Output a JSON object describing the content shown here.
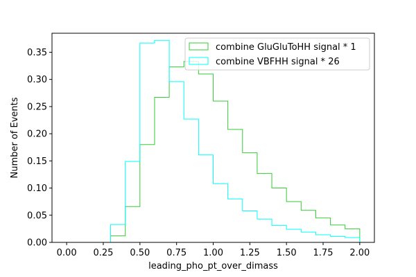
{
  "chart_data": {
    "type": "histogram-step",
    "xlabel": "leading_pho_pt_over_dimass",
    "ylabel": "Number of Events",
    "xlim": [
      -0.1,
      2.1
    ],
    "ylim": [
      0.0,
      0.385
    ],
    "x_ticks": [
      {
        "value": 0.0,
        "label": "0.00"
      },
      {
        "value": 0.25,
        "label": "0.25"
      },
      {
        "value": 0.5,
        "label": "0.50"
      },
      {
        "value": 0.75,
        "label": "0.75"
      },
      {
        "value": 1.0,
        "label": "1.00"
      },
      {
        "value": 1.25,
        "label": "1.25"
      },
      {
        "value": 1.5,
        "label": "1.50"
      },
      {
        "value": 1.75,
        "label": "1.75"
      },
      {
        "value": 2.0,
        "label": "2.00"
      }
    ],
    "y_ticks": [
      {
        "value": 0.0,
        "label": "0.00"
      },
      {
        "value": 0.05,
        "label": "0.05"
      },
      {
        "value": 0.1,
        "label": "0.10"
      },
      {
        "value": 0.15,
        "label": "0.15"
      },
      {
        "value": 0.2,
        "label": "0.20"
      },
      {
        "value": 0.25,
        "label": "0.25"
      },
      {
        "value": 0.3,
        "label": "0.30"
      },
      {
        "value": 0.35,
        "label": "0.35"
      }
    ],
    "bin_edges": [
      0.0,
      0.1,
      0.2,
      0.3,
      0.4,
      0.5,
      0.6,
      0.7,
      0.8,
      0.9,
      1.0,
      1.1,
      1.2,
      1.3,
      1.4,
      1.5,
      1.6,
      1.7,
      1.8,
      1.9,
      2.0
    ],
    "legend_position": "top-right",
    "grid": false,
    "series": [
      {
        "name": "combine GluGluToHH signal * 1",
        "color": "#32cd32",
        "values": [
          0.0,
          0.0,
          0.0,
          0.012,
          0.066,
          0.18,
          0.267,
          0.323,
          0.333,
          0.31,
          0.26,
          0.208,
          0.165,
          0.127,
          0.1,
          0.075,
          0.059,
          0.045,
          0.032,
          0.025
        ]
      },
      {
        "name": "combine VBFHH signal * 26",
        "color": "#00ffff",
        "values": [
          0.0,
          0.0,
          0.0,
          0.033,
          0.149,
          0.367,
          0.372,
          0.296,
          0.227,
          0.161,
          0.108,
          0.08,
          0.058,
          0.043,
          0.031,
          0.024,
          0.019,
          0.014,
          0.011,
          0.009
        ]
      }
    ]
  }
}
